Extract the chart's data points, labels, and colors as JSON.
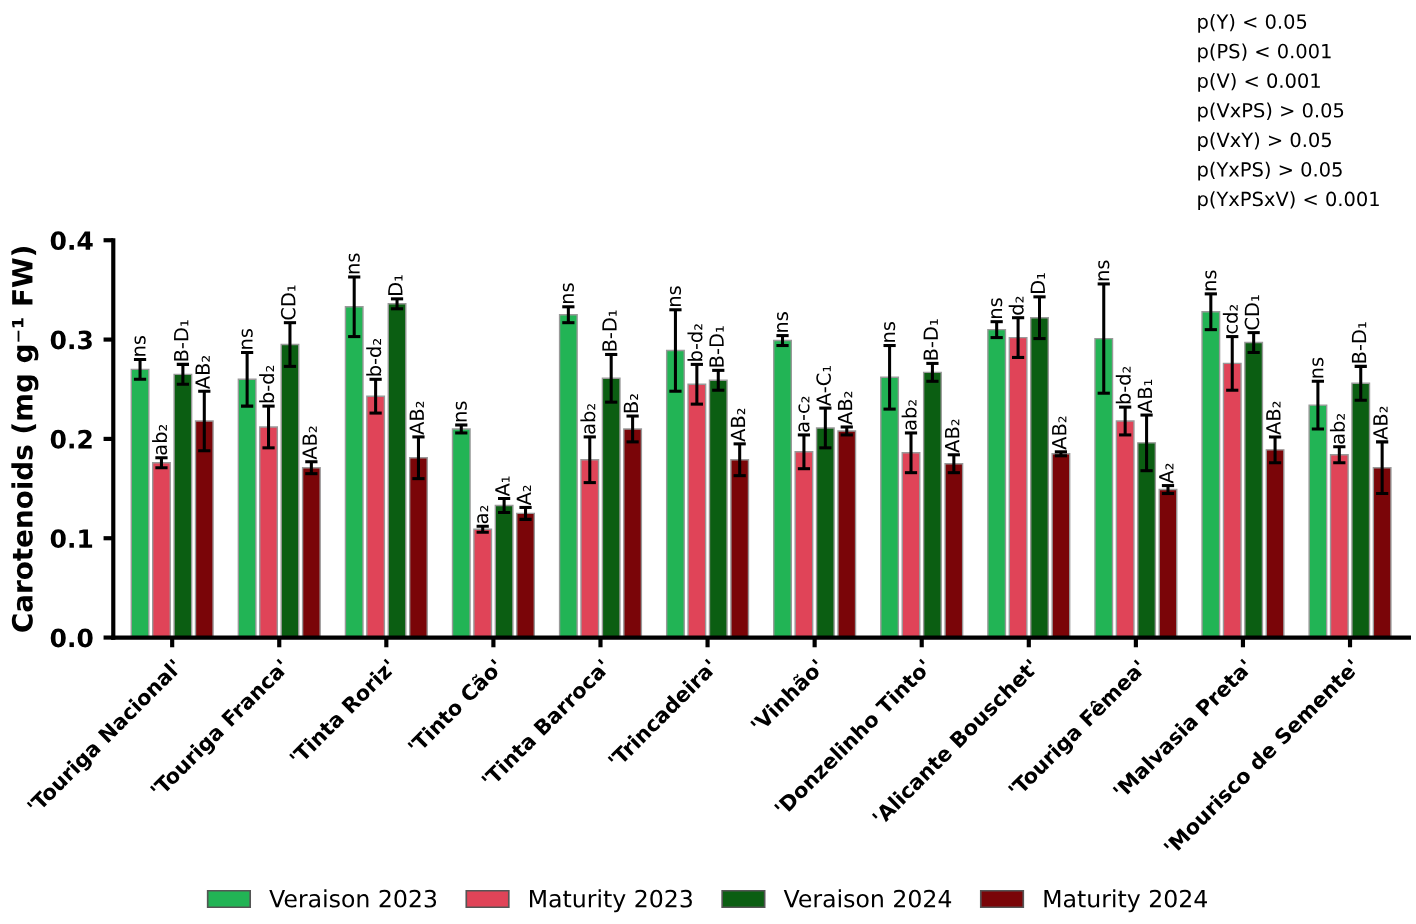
{
  "chart_data": {
    "type": "bar",
    "ylabel": "Carotenoids (mg g⁻¹ FW)",
    "categories": [
      "'Touriga Nacional'",
      "'Touriga Franca'",
      "'Tinta Roriz'",
      "'Tinto Cão'",
      "'Tinta Barroca'",
      "'Trincadeira'",
      "'Vinhão'",
      "'Donzelinho Tinto'",
      "'Alicante Bouschet'",
      "'Touriga Fêmea'",
      "'Malvasia Preta'",
      "'Mourisco de Semente'"
    ],
    "series": [
      {
        "name": "Veraison 2023",
        "color": "#22b455",
        "values": [
          0.27,
          0.26,
          0.333,
          0.21,
          0.325,
          0.289,
          0.299,
          0.262,
          0.31,
          0.301,
          0.328,
          0.234
        ],
        "errors": [
          0.01,
          0.027,
          0.03,
          0.004,
          0.008,
          0.041,
          0.005,
          0.032,
          0.008,
          0.055,
          0.018,
          0.024
        ],
        "value_labels": [
          "ns",
          "ns",
          "ns",
          "ns",
          "ns",
          "ns",
          "ns",
          "ns",
          "ns",
          "ns",
          "ns",
          "ns"
        ]
      },
      {
        "name": "Maturity 2023",
        "color": "#e04458",
        "values": [
          0.176,
          0.212,
          0.243,
          0.109,
          0.179,
          0.255,
          0.187,
          0.186,
          0.302,
          0.218,
          0.276,
          0.184
        ],
        "errors": [
          0.005,
          0.021,
          0.017,
          0.003,
          0.023,
          0.02,
          0.017,
          0.02,
          0.02,
          0.014,
          0.027,
          0.008
        ],
        "value_labels": [
          "ab₂",
          "b-d₂",
          "b-d₂",
          "a₂",
          "ab₂",
          "b-d₂",
          "a-c₂",
          "ab₂",
          "d₂",
          "b-d₂",
          "cd₂",
          "ab₂"
        ]
      },
      {
        "name": "Veraison 2024",
        "color": "#0b5e12",
        "values": [
          0.265,
          0.295,
          0.336,
          0.133,
          0.261,
          0.259,
          0.211,
          0.267,
          0.322,
          0.196,
          0.297,
          0.256
        ],
        "errors": [
          0.01,
          0.022,
          0.005,
          0.007,
          0.024,
          0.01,
          0.02,
          0.009,
          0.021,
          0.028,
          0.01,
          0.017
        ],
        "value_labels": [
          "B-D₁",
          "CD₁",
          "D₁",
          "A₁",
          "B-D₁",
          "B-D₁",
          "A-C₁",
          "B-D₁",
          "D₁",
          "AB₁",
          "CD₁",
          "B-D₁"
        ]
      },
      {
        "name": "Maturity 2024",
        "color": "#7a0508",
        "values": [
          0.218,
          0.171,
          0.181,
          0.125,
          0.21,
          0.179,
          0.208,
          0.175,
          0.185,
          0.149,
          0.189,
          0.171
        ],
        "errors": [
          0.03,
          0.006,
          0.021,
          0.006,
          0.013,
          0.016,
          0.004,
          0.009,
          0.002,
          0.004,
          0.013,
          0.026
        ],
        "value_labels": [
          "AB₂",
          "AB₂",
          "AB₂",
          "A₂",
          "B₂",
          "AB₂",
          "AB₂",
          "AB₂",
          "AB₂",
          "A₂",
          "AB₂",
          "AB₂"
        ]
      }
    ],
    "ylim": [
      0,
      0.4
    ],
    "yticks": [
      {
        "value": 0,
        "label": "0.0"
      },
      {
        "value": 0.1,
        "label": "0.1"
      },
      {
        "value": 0.2,
        "label": "0.2"
      },
      {
        "value": 0.3,
        "label": "0.3"
      },
      {
        "value": 0.4,
        "label": "0.4"
      }
    ],
    "annotations": [
      "p(Y) < 0.05",
      "p(PS) < 0.001",
      "p(V) < 0.001",
      "p(VxPS) > 0.05",
      "p(VxY) > 0.05",
      "p(YxPS) > 0.05",
      "p(YxPSxV) < 0.001"
    ],
    "legend": "bottom",
    "grid": false
  }
}
